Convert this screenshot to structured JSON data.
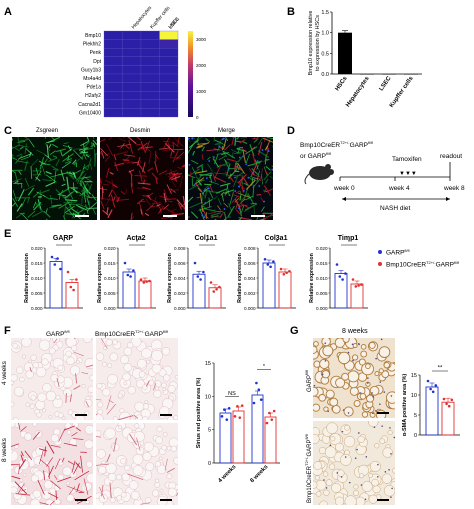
{
  "panels": {
    "A": "A",
    "B": "B",
    "C": "C",
    "D": "D",
    "E": "E",
    "F": "F",
    "G": "G"
  },
  "panelA": {
    "columns": [
      "HSCs",
      "Hepatocytes",
      "Kupffer cells",
      "LSEC"
    ],
    "rows": [
      "Bmp10",
      "Plekhh2",
      "Penk",
      "Dpt",
      "Gucy1b3",
      "Ms4a4d",
      "Pde1a",
      "H2afy2",
      "Cacna2d1",
      "Gm10400"
    ],
    "colorbar_ticks": [
      "3000",
      "2000",
      "1000",
      "0"
    ],
    "colors": {
      "low": "#2a1fa6",
      "high": "#f7f53a"
    }
  },
  "panelB": {
    "chart_data": {
      "type": "bar",
      "categories": [
        "HSCs",
        "Hepatocytes",
        "LSEC",
        "Kupffer cells"
      ],
      "values": [
        1.0,
        0.0,
        0.0,
        0.0
      ],
      "ylabel": "Bmp10 expression relative to expression by HSCs",
      "yticks": [
        "0.0",
        "0.5",
        "1.0",
        "1.5"
      ],
      "ylim": [
        0,
        1.5
      ]
    }
  },
  "panelC": {
    "titles": [
      "Zsgreen",
      "Desmin",
      "Merge"
    ]
  },
  "panelD": {
    "group_text": "Bmp10CreER",
    "group_sup": "T2+/-",
    "group_text2": "GARP",
    "group_sup2": "fl/fl",
    "or_text": "or GARP",
    "or_sup": "fl/fl",
    "tamoxifen": "Tamoxifen",
    "arrows": "▼▼▼",
    "readout": "readout",
    "week0": "week 0",
    "week4": "week 4",
    "week8": "week 8",
    "diet": "NASH diet"
  },
  "panelE": {
    "ylabel": "Relative expression",
    "sig": "*",
    "legend": [
      {
        "name": "GARP",
        "sup": "fl/fl",
        "color": "#2233cc"
      },
      {
        "name": "Bmp10CreER",
        "sup": "T2+/-",
        "suffix": "GARP",
        "sup2": "fl/fl",
        "color": "#e03030"
      }
    ],
    "chart_data": [
      {
        "type": "bar",
        "title": "GARP",
        "yticks": [
          "0.000",
          "0.005",
          "0.010",
          "0.015",
          "0.020"
        ],
        "ylim": [
          0,
          0.02
        ],
        "values": [
          0.0155,
          0.0085
        ],
        "points": [
          [
            0.017,
            0.0145,
            0.0165,
            0.013
          ],
          [
            0.012,
            0.007,
            0.006,
            0.0095
          ]
        ]
      },
      {
        "type": "bar",
        "title": "Acta2",
        "yticks": [
          "0.000",
          "0.005",
          "0.010",
          "0.015",
          "0.020"
        ],
        "ylim": [
          0,
          0.02
        ],
        "values": [
          0.012,
          0.009
        ],
        "points": [
          [
            0.015,
            0.011,
            0.0105,
            0.0125
          ],
          [
            0.0095,
            0.0085,
            0.0088,
            0.009
          ]
        ]
      },
      {
        "type": "bar",
        "title": "Col1a1",
        "yticks": [
          "0.000",
          "0.002",
          "0.004",
          "0.006",
          "0.008"
        ],
        "ylim": [
          0,
          0.008
        ],
        "values": [
          0.0045,
          0.0027
        ],
        "points": [
          [
            0.006,
            0.0042,
            0.0038,
            0.0048
          ],
          [
            0.0034,
            0.0022,
            0.0025,
            0.0028
          ]
        ]
      },
      {
        "type": "bar",
        "title": "Col3a1",
        "yticks": [
          "0.000",
          "0.002",
          "0.004",
          "0.006",
          "0.008"
        ],
        "ylim": [
          0,
          0.008
        ],
        "values": [
          0.006,
          0.0048
        ],
        "points": [
          [
            0.0065,
            0.0058,
            0.0055,
            0.0062
          ],
          [
            0.0052,
            0.0045,
            0.0047,
            0.0049
          ]
        ]
      },
      {
        "type": "bar",
        "title": "Timp1",
        "yticks": [
          "0.000",
          "0.005",
          "0.010",
          "0.015",
          "0.020"
        ],
        "ylim": [
          0,
          0.02
        ],
        "values": [
          0.0115,
          0.008
        ],
        "points": [
          [
            0.0145,
            0.0105,
            0.0095,
            0.0115
          ],
          [
            0.0095,
            0.0072,
            0.0075,
            0.0078
          ]
        ]
      }
    ]
  },
  "panelF": {
    "col_garp": "GARP",
    "col_garp_sup": "fl/fl",
    "col_bmp": "Bmp10CreER",
    "col_bmp_sup": "T2+/-",
    "col_bmp2": "GARP",
    "col_bmp2_sup": "fl/fl",
    "row1": "4 weeks",
    "row2": "8 weeks",
    "chart_data": {
      "type": "bar",
      "categories": [
        "4 weeks",
        "8 weeks"
      ],
      "series": [
        {
          "values": [
            7.5,
            10.2
          ],
          "points": [
            [
              7,
              8,
              6.5,
              8.2
            ],
            [
              9,
              12,
              11,
              9.5
            ]
          ]
        },
        {
          "values": [
            7.8,
            6.9
          ],
          "points": [
            [
              7,
              8.5,
              6.8,
              8.6
            ],
            [
              6,
              7.5,
              6.5,
              7.8
            ]
          ]
        }
      ],
      "ylabel": "Sirius red positive area (%)",
      "yticks": [
        "0",
        "5",
        "10",
        "15"
      ],
      "ylim": [
        0,
        15
      ],
      "sig": [
        "NS",
        "*"
      ]
    }
  },
  "panelG": {
    "title": "8 weeks",
    "lbl1": "GARP",
    "lbl1_sup": "fl/fl",
    "lbl2": "Bmp10CreER",
    "lbl2_sup": "T2+/-",
    "lbl2b": "GARP",
    "lbl2b_sup": "fl/fl",
    "chart_data": {
      "type": "bar",
      "categories": [
        "GARP fl/fl",
        "Bmp10CreER T2+/- GARP fl/fl"
      ],
      "values": [
        12.0,
        8.2
      ],
      "points": [
        [
          13.5,
          11.5,
          10.8,
          12.4
        ],
        [
          9,
          7.8,
          7.2,
          8.8
        ]
      ],
      "ylabel": "α-SMA positive area (%)",
      "yticks": [
        "0",
        "5",
        "10",
        "15"
      ],
      "ylim": [
        0,
        15
      ],
      "sig": "**"
    }
  }
}
